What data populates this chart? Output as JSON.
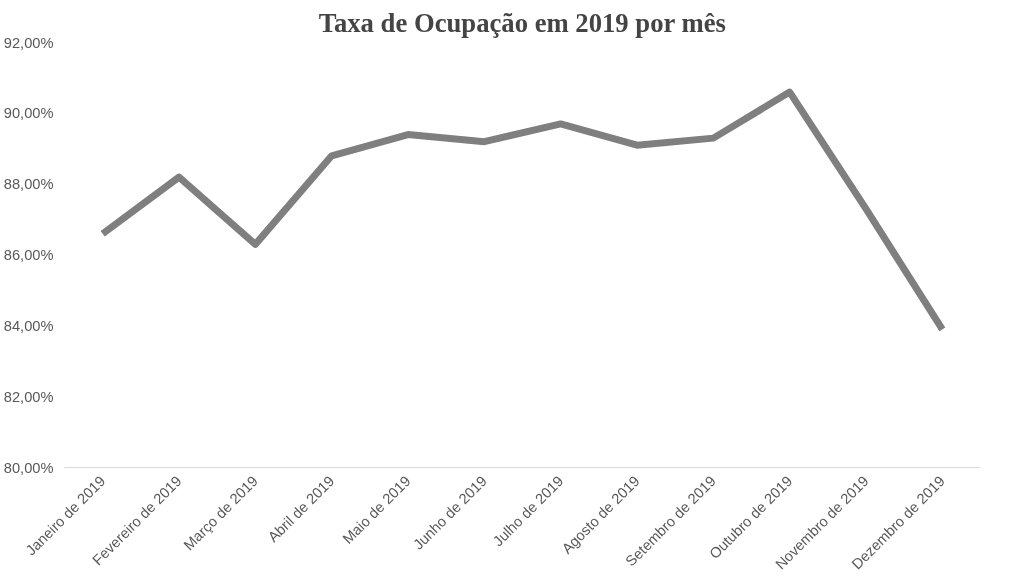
{
  "chart_data": {
    "type": "line",
    "title": "Taxa de Ocupação em 2019 por mês",
    "categories": [
      "Janeiro de 2019",
      "Fevereiro de 2019",
      "Março de 2019",
      "Abril de 2019",
      "Maio de 2019",
      "Junho de 2019",
      "Julho de 2019",
      "Agosto de 2019",
      "Setembro de 2019",
      "Outubro de 2019",
      "Novembro de 2019",
      "Dezembro de 2019"
    ],
    "series": [
      {
        "color": "#7f7f7f",
        "values": [
          86.6,
          88.2,
          86.3,
          88.8,
          89.4,
          89.2,
          89.7,
          89.1,
          89.3,
          90.6,
          87.3,
          83.9
        ]
      }
    ],
    "ylim": [
      80,
      92
    ],
    "yticks": [
      {
        "value": 80,
        "label": "80,00%"
      },
      {
        "value": 82,
        "label": "82,00%"
      },
      {
        "value": 84,
        "label": "84,00%"
      },
      {
        "value": 86,
        "label": "86,00%"
      },
      {
        "value": 88,
        "label": "88,00%"
      },
      {
        "value": 90,
        "label": "90,00%"
      },
      {
        "value": 92,
        "label": "92,00%"
      }
    ],
    "grid": false,
    "marker": "none",
    "line_style": "solid"
  }
}
